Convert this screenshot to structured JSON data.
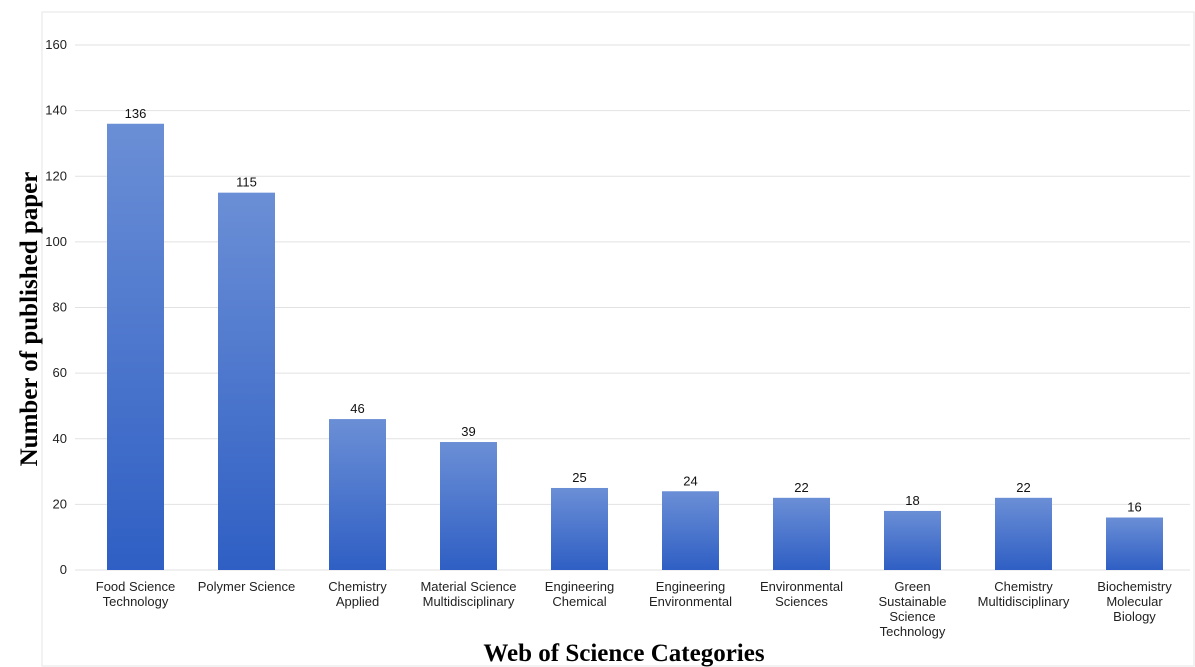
{
  "chart_data": {
    "type": "bar",
    "title": "",
    "xlabel": "Web of Science Categories",
    "ylabel": "Number of published paper",
    "ylim": [
      0,
      160
    ],
    "yticks": [
      0,
      20,
      40,
      60,
      80,
      100,
      120,
      140,
      160
    ],
    "grid": true,
    "legend": "none",
    "categories": [
      [
        "Food Science",
        "Technology"
      ],
      [
        "Polymer Science"
      ],
      [
        "Chemistry",
        "Applied"
      ],
      [
        "Material Science",
        "Multidisciplinary"
      ],
      [
        "Engineering",
        "Chemical"
      ],
      [
        "Engineering",
        "Environmental"
      ],
      [
        "Environmental",
        "Sciences"
      ],
      [
        "Green",
        "Sustainable",
        "Science",
        "Technology"
      ],
      [
        "Chemistry",
        "Multidisciplinary"
      ],
      [
        "Biochemistry",
        "Molecular",
        "Biology"
      ]
    ],
    "values": [
      136,
      115,
      46,
      39,
      25,
      24,
      22,
      18,
      22,
      16
    ],
    "colors": {
      "bar_top": "#6b8fd6",
      "bar_bottom": "#2f5fc4",
      "grid": "#e2e2e2"
    }
  }
}
